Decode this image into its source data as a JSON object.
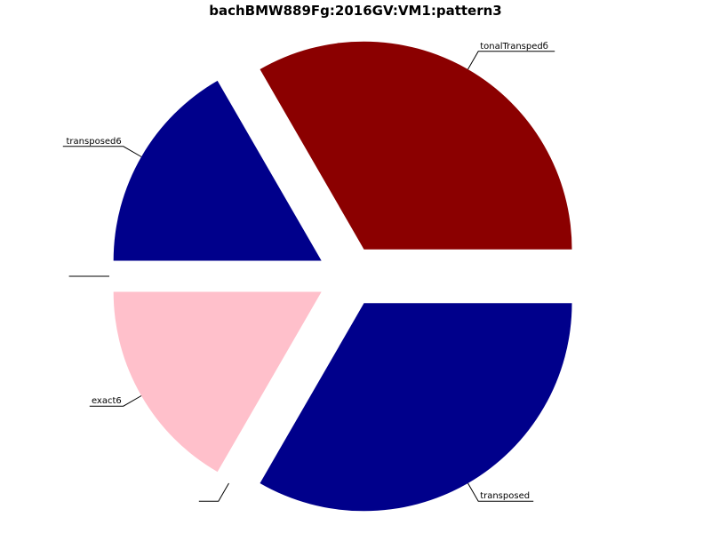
{
  "chart_data": {
    "type": "pie",
    "title": "bachBMW889Fg:2016GV:VM1:pattern3",
    "slices": [
      {
        "label": "tonalTranspedб",
        "value": 2,
        "color": "#8b0000"
      },
      {
        "label": "transposed6",
        "value": 1,
        "color": "#00008b"
      },
      {
        "label": "",
        "value": 0,
        "color": "#ffffff"
      },
      {
        "label": "exact6",
        "value": 1,
        "color": "#ffc0cb"
      },
      {
        "label": "",
        "value": 0,
        "color": "#ffffff"
      },
      {
        "label": "transposed",
        "value": 2,
        "color": "#00008b"
      }
    ],
    "start_angle_deg": 0,
    "explode": true,
    "legend": "none",
    "grid": false
  }
}
